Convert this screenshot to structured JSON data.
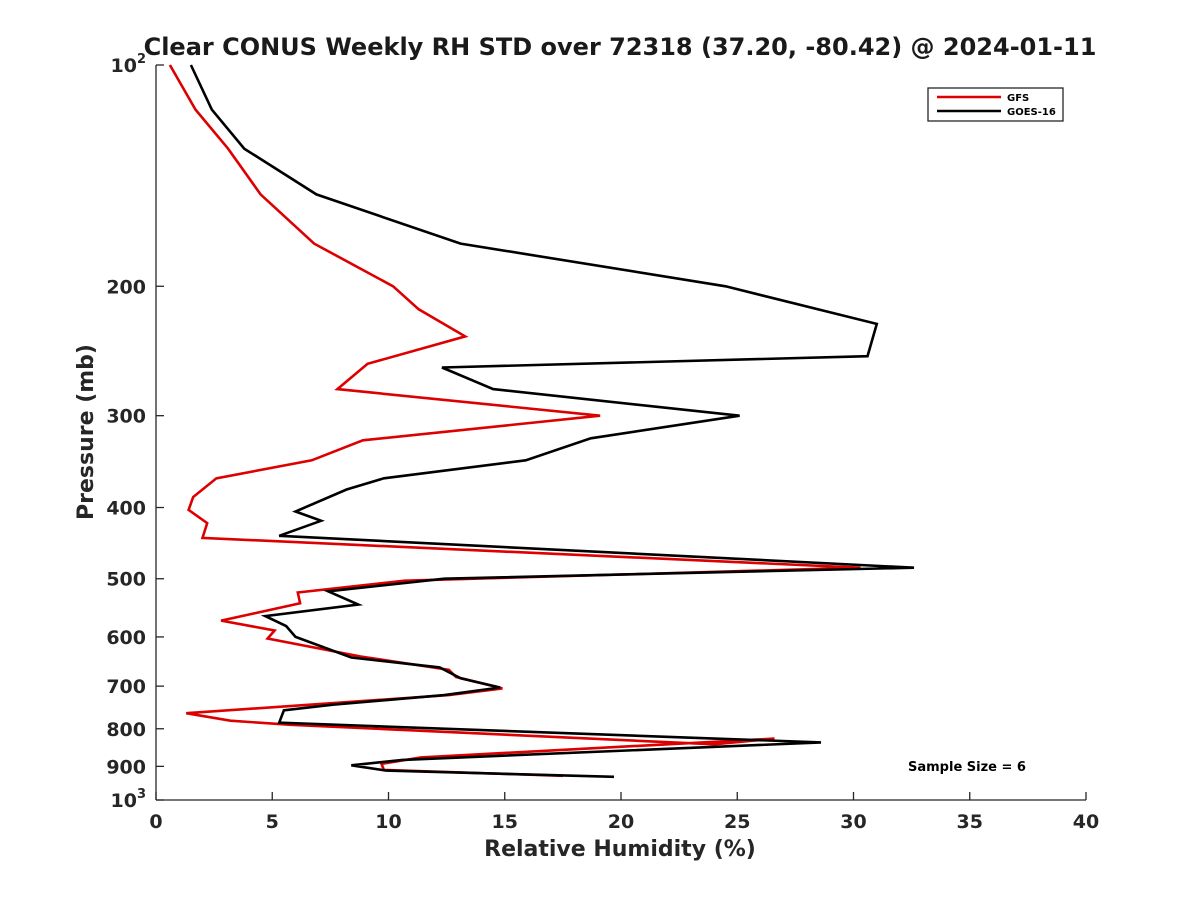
{
  "chart_data": {
    "type": "line",
    "title": "Clear CONUS Weekly RH STD over 72318 (37.20, -80.42) @ 2024-01-11",
    "xlabel": "Relative Humidity (%)",
    "ylabel": "Pressure (mb)",
    "xlim": [
      0,
      40
    ],
    "ylim": [
      100,
      1000
    ],
    "yscale": "log",
    "y_inverted": true,
    "x_ticks": [
      {
        "value": 0,
        "label": "0"
      },
      {
        "value": 5,
        "label": "5"
      },
      {
        "value": 10,
        "label": "10"
      },
      {
        "value": 15,
        "label": "15"
      },
      {
        "value": 20,
        "label": "20"
      },
      {
        "value": 25,
        "label": "25"
      },
      {
        "value": 30,
        "label": "30"
      },
      {
        "value": 35,
        "label": "35"
      },
      {
        "value": 40,
        "label": "40"
      }
    ],
    "y_ticks": [
      {
        "value": 100,
        "base": "10",
        "exp": "2"
      },
      {
        "value": 200,
        "label": "200"
      },
      {
        "value": 300,
        "label": "300"
      },
      {
        "value": 400,
        "label": "400"
      },
      {
        "value": 500,
        "label": "500"
      },
      {
        "value": 600,
        "label": "600"
      },
      {
        "value": 700,
        "label": "700"
      },
      {
        "value": 800,
        "label": "800"
      },
      {
        "value": 900,
        "label": "900"
      },
      {
        "value": 1000,
        "base": "10",
        "exp": "3"
      }
    ],
    "grid": false,
    "legend_position": "top-right",
    "annotation": "Sample Size = 6",
    "series": [
      {
        "name": "GFS",
        "color": "#dd0000",
        "points": [
          [
            0.6,
            100
          ],
          [
            1.7,
            115
          ],
          [
            3.1,
            130
          ],
          [
            4.5,
            150
          ],
          [
            6.8,
            175
          ],
          [
            10.2,
            200
          ],
          [
            11.3,
            215
          ],
          [
            13.3,
            234
          ],
          [
            9.1,
            255
          ],
          [
            7.8,
            276
          ],
          [
            19.1,
            300
          ],
          [
            8.9,
            324
          ],
          [
            6.7,
            345
          ],
          [
            2.6,
            365
          ],
          [
            1.6,
            387
          ],
          [
            1.4,
            403
          ],
          [
            2.2,
            420
          ],
          [
            2.0,
            440
          ],
          [
            30.3,
            483
          ],
          [
            10.7,
            503
          ],
          [
            6.1,
            522
          ],
          [
            6.2,
            540
          ],
          [
            2.8,
            570
          ],
          [
            5.1,
            588
          ],
          [
            4.8,
            603
          ],
          [
            8.8,
            638
          ],
          [
            12.6,
            665
          ],
          [
            12.9,
            680
          ],
          [
            14.9,
            705
          ],
          [
            12.6,
            720
          ],
          [
            1.3,
            762
          ],
          [
            3.2,
            780
          ],
          [
            5.8,
            790
          ],
          [
            24.0,
            840
          ],
          [
            26.6,
            825
          ],
          [
            11.4,
            875
          ],
          [
            9.7,
            893
          ],
          [
            9.8,
            910
          ],
          [
            17.5,
            927
          ]
        ]
      },
      {
        "name": "GOES-16",
        "color": "#000000",
        "points": [
          [
            1.5,
            100
          ],
          [
            2.4,
            115
          ],
          [
            3.8,
            130
          ],
          [
            6.9,
            150
          ],
          [
            13.1,
            175
          ],
          [
            24.5,
            200
          ],
          [
            31.0,
            225
          ],
          [
            30.6,
            249
          ],
          [
            12.3,
            258
          ],
          [
            14.5,
            276
          ],
          [
            25.1,
            300
          ],
          [
            18.7,
            322
          ],
          [
            15.9,
            345
          ],
          [
            9.8,
            365
          ],
          [
            8.2,
            378
          ],
          [
            6.0,
            405
          ],
          [
            7.1,
            417
          ],
          [
            5.3,
            437
          ],
          [
            32.6,
            483
          ],
          [
            12.4,
            500
          ],
          [
            7.4,
            520
          ],
          [
            8.7,
            542
          ],
          [
            4.7,
            562
          ],
          [
            5.6,
            580
          ],
          [
            6.0,
            600
          ],
          [
            8.4,
            640
          ],
          [
            12.2,
            660
          ],
          [
            13.1,
            683
          ],
          [
            14.8,
            703
          ],
          [
            12.4,
            720
          ],
          [
            7.6,
            742
          ],
          [
            5.5,
            755
          ],
          [
            5.3,
            785
          ],
          [
            28.6,
            835
          ],
          [
            10.6,
            882
          ],
          [
            8.4,
            897
          ],
          [
            9.9,
            912
          ],
          [
            19.7,
            930
          ]
        ]
      }
    ]
  }
}
